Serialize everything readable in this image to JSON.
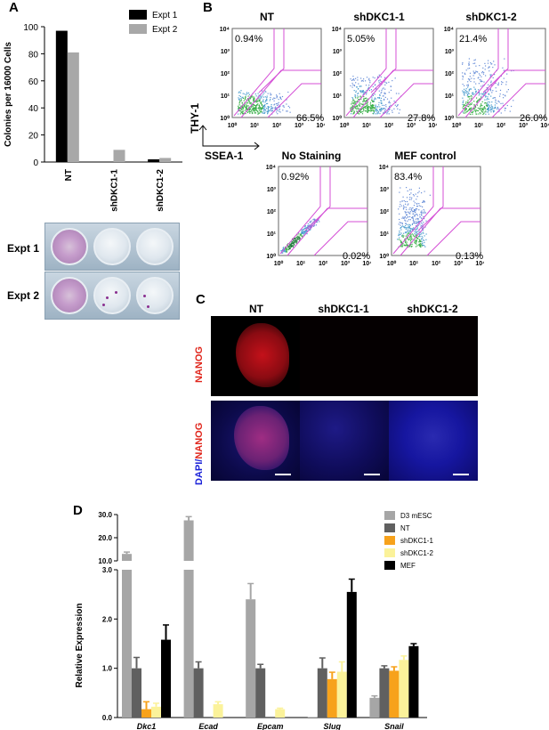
{
  "panels": {
    "a": "A",
    "b": "B",
    "c": "C",
    "d": "D"
  },
  "panelA": {
    "plates": {
      "expt1": "Expt 1",
      "expt2": "Expt 2"
    }
  },
  "panelB": {
    "titles": [
      "NT",
      "shDKC1-1",
      "shDKC1-2",
      "No Staining",
      "MEF control"
    ],
    "upper_left": [
      "0.94%",
      "5.05%",
      "21.4%",
      "0.92%",
      "83.4%"
    ],
    "lower_right": [
      "66.5%",
      "27.8%",
      "26.0%",
      "0.02%",
      "0.13%"
    ],
    "thy1": "THY-1",
    "ssea1": "SSEA-1"
  },
  "panelC": {
    "titles": [
      "NT",
      "shDKC1-1",
      "shDKC1-2"
    ],
    "nanog": "NANOG",
    "dapi": "DAPI/",
    "nanog2": "NANOG"
  },
  "chart_data": [
    {
      "type": "bar",
      "panel": "A",
      "ylabel": "Colonies per 16000 Cells",
      "categories": [
        "NT",
        "shDKC1-1",
        "shDKC1-2"
      ],
      "series": [
        {
          "name": "Expt 1",
          "color": "#000000",
          "values": [
            97,
            0,
            2
          ]
        },
        {
          "name": "Expt 2",
          "color": "#a8a8a8",
          "values": [
            81,
            9,
            3
          ]
        }
      ],
      "ylim": [
        0,
        100
      ],
      "yticks": [
        "0",
        "20",
        "40",
        "60",
        "80",
        "100"
      ],
      "legend": "top-right"
    },
    {
      "type": "scatter",
      "panel": "B",
      "xlabel": "SSEA-1",
      "ylabel": "THY-1",
      "axis_scale": "log",
      "xticks": [
        "10⁰",
        "10¹",
        "10²",
        "10³",
        "10⁴"
      ],
      "yticks": [
        "10⁰",
        "10¹",
        "10²",
        "10³",
        "10⁴"
      ]
    },
    {
      "type": "bar",
      "panel": "D",
      "ylabel": "Relative Expression",
      "categories": [
        "Dkc1",
        "Ecad",
        "Epcam",
        "Slug",
        "Snail"
      ],
      "series": [
        {
          "name": "D3 mESC",
          "color": "#a6a6a6",
          "values": [
            13,
            27.5,
            2.4,
            0.01,
            0.4
          ],
          "errors": [
            0.8,
            1.6,
            0.32,
            0,
            0.04
          ]
        },
        {
          "name": "NT",
          "color": "#606060",
          "values": [
            1.0,
            1.0,
            1.0,
            1.0,
            1.0
          ],
          "errors": [
            0.22,
            0.13,
            0.08,
            0.21,
            0.05
          ]
        },
        {
          "name": "shDKC1-1",
          "color": "#f7a21b",
          "values": [
            0.17,
            0.0,
            0.0,
            0.78,
            0.95
          ],
          "errors": [
            0.15,
            0,
            0,
            0.14,
            0.08
          ]
        },
        {
          "name": "shDKC1-2",
          "color": "#fbf29a",
          "values": [
            0.22,
            0.27,
            0.17,
            0.93,
            1.17
          ],
          "errors": [
            0.07,
            0.05,
            0.02,
            0.2,
            0.08
          ]
        },
        {
          "name": "MEF",
          "color": "#000000",
          "values": [
            1.58,
            0,
            0,
            2.55,
            1.45
          ],
          "errors": [
            0.3,
            0,
            0,
            0.26,
            0.05
          ]
        }
      ],
      "yticks_lower": [
        "0.0",
        "1.0",
        "2.0",
        "3.0"
      ],
      "yticks_upper": [
        "10.0",
        "20.0",
        "30.0"
      ],
      "axis_break": true,
      "legend": "top-right"
    }
  ]
}
